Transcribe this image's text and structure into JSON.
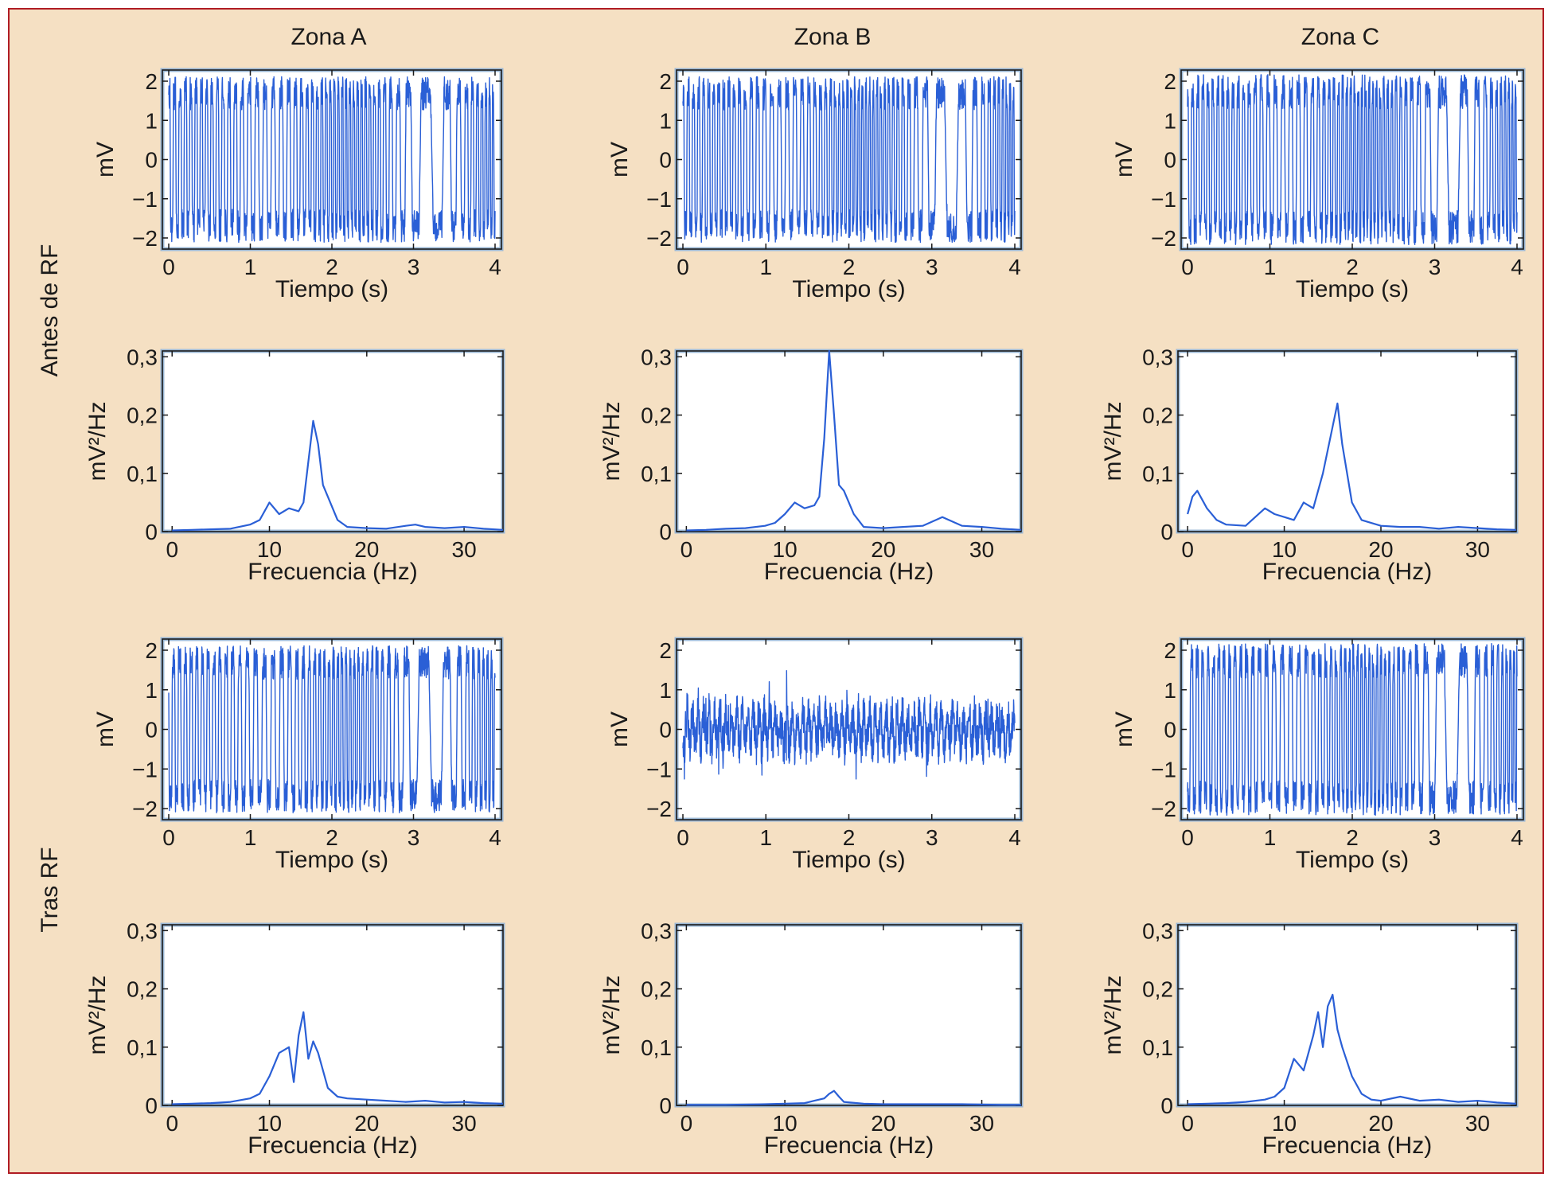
{
  "colors": {
    "background": "#f5e0c3",
    "border": "#b01c24",
    "trace": "#2a5fd6",
    "axes": "#1a1a1a"
  },
  "columns": [
    "Zona A",
    "Zona B",
    "Zona C"
  ],
  "rows": [
    "Antes de RF",
    "Tras RF"
  ],
  "time_axis": {
    "xlabel": "Tiempo (s)",
    "ylabel": "mV",
    "xticks": [
      "0",
      "1",
      "2",
      "3",
      "4"
    ],
    "yticks": [
      "2",
      "1",
      "0",
      "−1",
      "−2"
    ]
  },
  "freq_axis": {
    "xlabel": "Frecuencia (Hz)",
    "ylabel": "mV²/Hz",
    "xticks": [
      "0",
      "10",
      "20",
      "30"
    ],
    "yticks": [
      "0,3",
      "0,2",
      "0,1",
      "0"
    ]
  },
  "chart_data": [
    {
      "type": "line",
      "title": "Zona A",
      "row": "Antes de RF",
      "kind": "time",
      "xlabel": "Tiempo (s)",
      "ylabel": "mV",
      "xlim": [
        0,
        4
      ],
      "ylim": [
        -2,
        2
      ],
      "signal": {
        "pattern": "fibrillation",
        "amplitude": 1.85,
        "frequency_hz": 14
      }
    },
    {
      "type": "line",
      "title": "Zona B",
      "row": "Antes de RF",
      "kind": "time",
      "xlabel": "Tiempo (s)",
      "ylabel": "mV",
      "xlim": [
        0,
        4
      ],
      "ylim": [
        -2,
        2
      ],
      "signal": {
        "pattern": "fibrillation",
        "amplitude": 1.85,
        "frequency_hz": 15
      }
    },
    {
      "type": "line",
      "title": "Zona C",
      "row": "Antes de RF",
      "kind": "time",
      "xlabel": "Tiempo (s)",
      "ylabel": "mV",
      "xlim": [
        0,
        4
      ],
      "ylim": [
        -2,
        2
      ],
      "signal": {
        "pattern": "fibrillation",
        "amplitude": 1.9,
        "frequency_hz": 15
      }
    },
    {
      "type": "line",
      "title": "Zona A",
      "row": "Antes de RF",
      "kind": "spectrum",
      "xlabel": "Frecuencia (Hz)",
      "ylabel": "mV²/Hz",
      "xlim": [
        -1,
        34
      ],
      "ylim": [
        0,
        0.31
      ],
      "x": [
        0,
        2,
        4,
        6,
        8,
        9,
        10,
        11,
        12,
        13,
        13.5,
        14,
        14.5,
        15,
        15.5,
        16,
        17,
        18,
        20,
        22,
        24,
        25,
        26,
        28,
        30,
        32,
        34
      ],
      "y": [
        0.002,
        0.003,
        0.004,
        0.005,
        0.012,
        0.02,
        0.05,
        0.03,
        0.04,
        0.035,
        0.05,
        0.12,
        0.19,
        0.15,
        0.08,
        0.06,
        0.02,
        0.008,
        0.006,
        0.005,
        0.01,
        0.012,
        0.008,
        0.006,
        0.008,
        0.005,
        0.003
      ]
    },
    {
      "type": "line",
      "title": "Zona B",
      "row": "Antes de RF",
      "kind": "spectrum",
      "xlabel": "Frecuencia (Hz)",
      "ylabel": "mV²/Hz",
      "xlim": [
        -1,
        34
      ],
      "ylim": [
        0,
        0.31
      ],
      "x": [
        0,
        2,
        4,
        6,
        8,
        9,
        10,
        11,
        12,
        13,
        13.5,
        14,
        14.5,
        15,
        15.5,
        16,
        17,
        18,
        20,
        22,
        24,
        26,
        28,
        30,
        32,
        34
      ],
      "y": [
        0.002,
        0.003,
        0.005,
        0.006,
        0.01,
        0.015,
        0.03,
        0.05,
        0.04,
        0.045,
        0.06,
        0.16,
        0.31,
        0.2,
        0.08,
        0.07,
        0.03,
        0.008,
        0.006,
        0.008,
        0.01,
        0.025,
        0.01,
        0.008,
        0.005,
        0.003
      ]
    },
    {
      "type": "line",
      "title": "Zona C",
      "row": "Antes de RF",
      "kind": "spectrum",
      "xlabel": "Frecuencia (Hz)",
      "ylabel": "mV²/Hz",
      "xlim": [
        -1,
        34
      ],
      "ylim": [
        0,
        0.31
      ],
      "x": [
        0,
        0.5,
        1,
        2,
        3,
        4,
        6,
        8,
        9,
        10,
        11,
        12,
        13,
        14,
        15,
        15.5,
        16,
        17,
        18,
        20,
        22,
        24,
        26,
        28,
        30,
        32,
        34
      ],
      "y": [
        0.03,
        0.06,
        0.07,
        0.04,
        0.02,
        0.012,
        0.01,
        0.04,
        0.03,
        0.025,
        0.02,
        0.05,
        0.04,
        0.1,
        0.18,
        0.22,
        0.15,
        0.05,
        0.02,
        0.01,
        0.008,
        0.008,
        0.005,
        0.008,
        0.006,
        0.004,
        0.003
      ]
    },
    {
      "type": "line",
      "title": "Zona A",
      "row": "Tras RF",
      "kind": "time",
      "xlabel": "Tiempo (s)",
      "ylabel": "mV",
      "xlim": [
        0,
        4
      ],
      "ylim": [
        -2,
        2
      ],
      "signal": {
        "pattern": "fibrillation",
        "amplitude": 1.85,
        "frequency_hz": 13
      }
    },
    {
      "type": "line",
      "title": "Zona B",
      "row": "Tras RF",
      "kind": "time",
      "xlabel": "Tiempo (s)",
      "ylabel": "mV",
      "xlim": [
        0,
        4
      ],
      "ylim": [
        -2,
        2
      ],
      "signal": {
        "pattern": "low-amplitude",
        "amplitude": 0.75,
        "frequency_hz": 15
      }
    },
    {
      "type": "line",
      "title": "Zona C",
      "row": "Tras RF",
      "kind": "time",
      "xlabel": "Tiempo (s)",
      "ylabel": "mV",
      "xlim": [
        0,
        4
      ],
      "ylim": [
        -2,
        2
      ],
      "signal": {
        "pattern": "fibrillation",
        "amplitude": 1.9,
        "frequency_hz": 14
      }
    },
    {
      "type": "line",
      "title": "Zona A",
      "row": "Tras RF",
      "kind": "spectrum",
      "xlabel": "Frecuencia (Hz)",
      "ylabel": "mV²/Hz",
      "xlim": [
        -1,
        34
      ],
      "ylim": [
        0,
        0.31
      ],
      "x": [
        0,
        2,
        4,
        6,
        8,
        9,
        10,
        11,
        12,
        12.5,
        13,
        13.5,
        14,
        14.5,
        15,
        16,
        17,
        18,
        20,
        22,
        24,
        26,
        28,
        30,
        32,
        34
      ],
      "y": [
        0.002,
        0.003,
        0.004,
        0.006,
        0.012,
        0.02,
        0.05,
        0.09,
        0.1,
        0.04,
        0.12,
        0.16,
        0.08,
        0.11,
        0.09,
        0.03,
        0.015,
        0.012,
        0.01,
        0.008,
        0.006,
        0.008,
        0.005,
        0.006,
        0.004,
        0.003
      ]
    },
    {
      "type": "line",
      "title": "Zona B",
      "row": "Tras RF",
      "kind": "spectrum",
      "xlabel": "Frecuencia (Hz)",
      "ylabel": "mV²/Hz",
      "xlim": [
        -1,
        34
      ],
      "ylim": [
        0,
        0.31
      ],
      "x": [
        0,
        4,
        8,
        10,
        12,
        13,
        14,
        14.5,
        15,
        15.5,
        16,
        18,
        20,
        24,
        28,
        32,
        34
      ],
      "y": [
        0.001,
        0.001,
        0.002,
        0.003,
        0.004,
        0.008,
        0.012,
        0.02,
        0.025,
        0.015,
        0.006,
        0.003,
        0.002,
        0.002,
        0.002,
        0.001,
        0.001
      ]
    },
    {
      "type": "line",
      "title": "Zona C",
      "row": "Tras RF",
      "kind": "spectrum",
      "xlabel": "Frecuencia (Hz)",
      "ylabel": "mV²/Hz",
      "xlim": [
        -1,
        34
      ],
      "ylim": [
        0,
        0.31
      ],
      "x": [
        0,
        2,
        4,
        6,
        8,
        9,
        10,
        11,
        12,
        13,
        13.5,
        14,
        14.5,
        15,
        15.5,
        16,
        17,
        18,
        19,
        20,
        22,
        24,
        26,
        28,
        30,
        32,
        34
      ],
      "y": [
        0.002,
        0.003,
        0.004,
        0.006,
        0.01,
        0.015,
        0.03,
        0.08,
        0.06,
        0.12,
        0.16,
        0.1,
        0.17,
        0.19,
        0.13,
        0.1,
        0.05,
        0.02,
        0.01,
        0.008,
        0.015,
        0.008,
        0.01,
        0.006,
        0.008,
        0.005,
        0.003
      ]
    }
  ]
}
